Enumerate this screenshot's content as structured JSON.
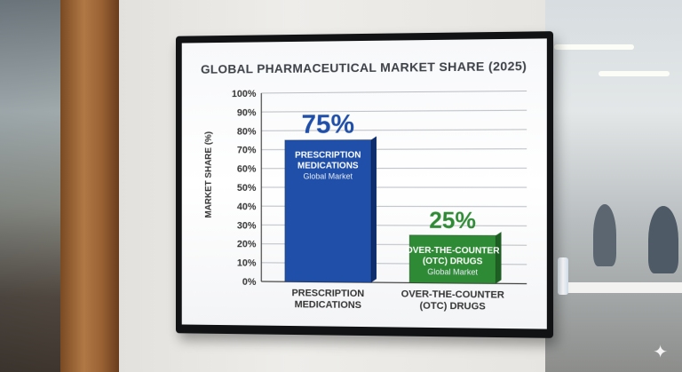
{
  "chart_data": {
    "type": "bar",
    "title": "GLOBAL PHARMACEUTICAL MARKET SHARE (2025)",
    "ylabel": "MARKET SHARE (%)",
    "xlabel": "",
    "ylim": [
      0,
      100
    ],
    "yticks": [
      "0%",
      "10%",
      "20%",
      "30%",
      "40%",
      "50%",
      "60%",
      "70%",
      "80%",
      "90%",
      "100%"
    ],
    "grid": true,
    "categories": [
      "PRESCRIPTION MEDICATIONS",
      "OVER-THE-COUNTER (OTC) DRUGS"
    ],
    "category_lines": [
      [
        "PRESCRIPTION",
        "MEDICATIONS"
      ],
      [
        "OVER-THE-COUNTER",
        "(OTC) DRUGS"
      ]
    ],
    "values": [
      75,
      25
    ],
    "value_labels": [
      "75%",
      "25%"
    ],
    "bar_labels": [
      [
        "PRESCRIPTION",
        "MEDICATIONS"
      ],
      [
        "OVER-THE-COUNTER",
        "(OTC) DRUGS"
      ]
    ],
    "bar_sublabels": [
      "Global Market",
      "Global Market"
    ],
    "colors": [
      "#1f4fa8",
      "#2f8a35"
    ],
    "value_label_colors": [
      "#1f4fa8",
      "#2f8a35"
    ]
  }
}
